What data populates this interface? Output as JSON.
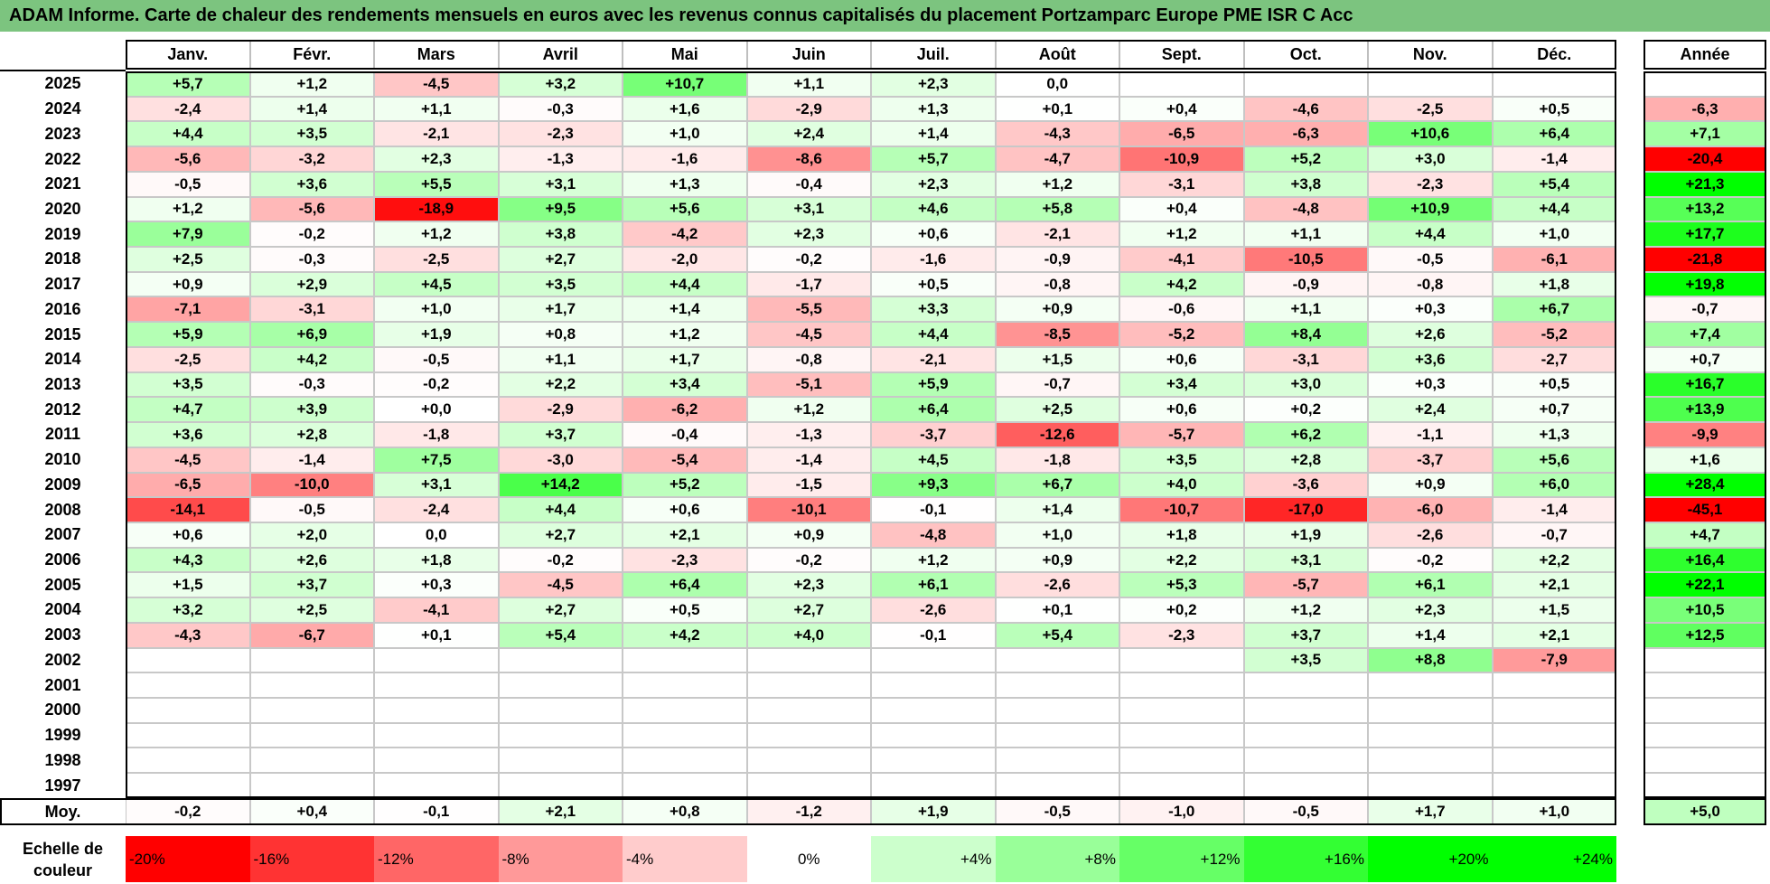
{
  "title": "ADAM Informe. Carte de chaleur des rendements mensuels en euros avec les revenus connus capitalisés du placement Portzamparc Europe PME ISR C Acc",
  "chart_data": {
    "type": "heatmap",
    "months": [
      "Janv.",
      "Févr.",
      "Mars",
      "Avril",
      "Mai",
      "Juin",
      "Juil.",
      "Août",
      "Sept.",
      "Oct.",
      "Nov.",
      "Déc."
    ],
    "year_header": "Année",
    "rows": [
      {
        "year": "2025",
        "values": [
          "+5,7",
          "+1,2",
          "-4,5",
          "+3,2",
          "+10,7",
          "+1,1",
          "+2,3",
          "0,0",
          "",
          "",
          "",
          ""
        ],
        "annual": ""
      },
      {
        "year": "2024",
        "values": [
          "-2,4",
          "+1,4",
          "+1,1",
          "-0,3",
          "+1,6",
          "-2,9",
          "+1,3",
          "+0,1",
          "+0,4",
          "-4,6",
          "-2,5",
          "+0,5"
        ],
        "annual": "-6,3"
      },
      {
        "year": "2023",
        "values": [
          "+4,4",
          "+3,5",
          "-2,1",
          "-2,3",
          "+1,0",
          "+2,4",
          "+1,4",
          "-4,3",
          "-6,5",
          "-6,3",
          "+10,6",
          "+6,4"
        ],
        "annual": "+7,1"
      },
      {
        "year": "2022",
        "values": [
          "-5,6",
          "-3,2",
          "+2,3",
          "-1,3",
          "-1,6",
          "-8,6",
          "+5,7",
          "-4,7",
          "-10,9",
          "+5,2",
          "+3,0",
          "-1,4"
        ],
        "annual": "-20,4"
      },
      {
        "year": "2021",
        "values": [
          "-0,5",
          "+3,6",
          "+5,5",
          "+3,1",
          "+1,3",
          "-0,4",
          "+2,3",
          "+1,2",
          "-3,1",
          "+3,8",
          "-2,3",
          "+5,4"
        ],
        "annual": "+21,3"
      },
      {
        "year": "2020",
        "values": [
          "+1,2",
          "-5,6",
          "-18,9",
          "+9,5",
          "+5,6",
          "+3,1",
          "+4,6",
          "+5,8",
          "+0,4",
          "-4,8",
          "+10,9",
          "+4,4"
        ],
        "annual": "+13,2"
      },
      {
        "year": "2019",
        "values": [
          "+7,9",
          "-0,2",
          "+1,2",
          "+3,8",
          "-4,2",
          "+2,3",
          "+0,6",
          "-2,1",
          "+1,2",
          "+1,1",
          "+4,4",
          "+1,0"
        ],
        "annual": "+17,7"
      },
      {
        "year": "2018",
        "values": [
          "+2,5",
          "-0,3",
          "-2,5",
          "+2,7",
          "-2,0",
          "-0,2",
          "-1,6",
          "-0,9",
          "-4,1",
          "-10,5",
          "-0,5",
          "-6,1"
        ],
        "annual": "-21,8"
      },
      {
        "year": "2017",
        "values": [
          "+0,9",
          "+2,9",
          "+4,5",
          "+3,5",
          "+4,4",
          "-1,7",
          "+0,5",
          "-0,8",
          "+4,2",
          "-0,9",
          "-0,8",
          "+1,8"
        ],
        "annual": "+19,8"
      },
      {
        "year": "2016",
        "values": [
          "-7,1",
          "-3,1",
          "+1,0",
          "+1,7",
          "+1,4",
          "-5,5",
          "+3,3",
          "+0,9",
          "-0,6",
          "+1,1",
          "+0,3",
          "+6,7"
        ],
        "annual": "-0,7"
      },
      {
        "year": "2015",
        "values": [
          "+5,9",
          "+6,9",
          "+1,9",
          "+0,8",
          "+1,2",
          "-4,5",
          "+4,4",
          "-8,5",
          "-5,2",
          "+8,4",
          "+2,6",
          "-5,2"
        ],
        "annual": "+7,4"
      },
      {
        "year": "2014",
        "values": [
          "-2,5",
          "+4,2",
          "-0,5",
          "+1,1",
          "+1,7",
          "-0,8",
          "-2,1",
          "+1,5",
          "+0,6",
          "-3,1",
          "+3,6",
          "-2,7"
        ],
        "annual": "+0,7"
      },
      {
        "year": "2013",
        "values": [
          "+3,5",
          "-0,3",
          "-0,2",
          "+2,2",
          "+3,4",
          "-5,1",
          "+5,9",
          "-0,7",
          "+3,4",
          "+3,0",
          "+0,3",
          "+0,5"
        ],
        "annual": "+16,7"
      },
      {
        "year": "2012",
        "values": [
          "+4,7",
          "+3,9",
          "+0,0",
          "-2,9",
          "-6,2",
          "+1,2",
          "+6,4",
          "+2,5",
          "+0,6",
          "+0,2",
          "+2,4",
          "+0,7"
        ],
        "annual": "+13,9"
      },
      {
        "year": "2011",
        "values": [
          "+3,6",
          "+2,8",
          "-1,8",
          "+3,7",
          "-0,4",
          "-1,3",
          "-3,7",
          "-12,6",
          "-5,7",
          "+6,2",
          "-1,1",
          "+1,3"
        ],
        "annual": "-9,9"
      },
      {
        "year": "2010",
        "values": [
          "-4,5",
          "-1,4",
          "+7,5",
          "-3,0",
          "-5,4",
          "-1,4",
          "+4,5",
          "-1,8",
          "+3,5",
          "+2,8",
          "-3,7",
          "+5,6"
        ],
        "annual": "+1,6"
      },
      {
        "year": "2009",
        "values": [
          "-6,5",
          "-10,0",
          "+3,1",
          "+14,2",
          "+5,2",
          "-1,5",
          "+9,3",
          "+6,7",
          "+4,0",
          "-3,6",
          "+0,9",
          "+6,0"
        ],
        "annual": "+28,4"
      },
      {
        "year": "2008",
        "values": [
          "-14,1",
          "-0,5",
          "-2,4",
          "+4,4",
          "+0,6",
          "-10,1",
          "-0,1",
          "+1,4",
          "-10,7",
          "-17,0",
          "-6,0",
          "-1,4"
        ],
        "annual": "-45,1"
      },
      {
        "year": "2007",
        "values": [
          "+0,6",
          "+2,0",
          "0,0",
          "+2,7",
          "+2,1",
          "+0,9",
          "-4,8",
          "+1,0",
          "+1,8",
          "+1,9",
          "-2,6",
          "-0,7"
        ],
        "annual": "+4,7"
      },
      {
        "year": "2006",
        "values": [
          "+4,3",
          "+2,6",
          "+1,8",
          "-0,2",
          "-2,3",
          "-0,2",
          "+1,2",
          "+0,9",
          "+2,2",
          "+3,1",
          "-0,2",
          "+2,2"
        ],
        "annual": "+16,4"
      },
      {
        "year": "2005",
        "values": [
          "+1,5",
          "+3,7",
          "+0,3",
          "-4,5",
          "+6,4",
          "+2,3",
          "+6,1",
          "-2,6",
          "+5,3",
          "-5,7",
          "+6,1",
          "+2,1"
        ],
        "annual": "+22,1"
      },
      {
        "year": "2004",
        "values": [
          "+3,2",
          "+2,5",
          "-4,1",
          "+2,7",
          "+0,5",
          "+2,7",
          "-2,6",
          "+0,1",
          "+0,2",
          "+1,2",
          "+2,3",
          "+1,5"
        ],
        "annual": "+10,5"
      },
      {
        "year": "2003",
        "values": [
          "-4,3",
          "-6,7",
          "+0,1",
          "+5,4",
          "+4,2",
          "+4,0",
          "-0,1",
          "+5,4",
          "-2,3",
          "+3,7",
          "+1,4",
          "+2,1"
        ],
        "annual": "+12,5"
      },
      {
        "year": "2002",
        "values": [
          "",
          "",
          "",
          "",
          "",
          "",
          "",
          "",
          "",
          "+3,5",
          "+8,8",
          "-7,9"
        ],
        "annual": ""
      },
      {
        "year": "2001",
        "values": [
          "",
          "",
          "",
          "",
          "",
          "",
          "",
          "",
          "",
          "",
          "",
          ""
        ],
        "annual": ""
      },
      {
        "year": "2000",
        "values": [
          "",
          "",
          "",
          "",
          "",
          "",
          "",
          "",
          "",
          "",
          "",
          ""
        ],
        "annual": ""
      },
      {
        "year": "1999",
        "values": [
          "",
          "",
          "",
          "",
          "",
          "",
          "",
          "",
          "",
          "",
          "",
          ""
        ],
        "annual": ""
      },
      {
        "year": "1998",
        "values": [
          "",
          "",
          "",
          "",
          "",
          "",
          "",
          "",
          "",
          "",
          "",
          ""
        ],
        "annual": ""
      },
      {
        "year": "1997",
        "values": [
          "",
          "",
          "",
          "",
          "",
          "",
          "",
          "",
          "",
          "",
          "",
          ""
        ],
        "annual": ""
      }
    ],
    "average": {
      "label": "Moy.",
      "values": [
        "-0,2",
        "+0,4",
        "-0,1",
        "+2,1",
        "+0,8",
        "-1,2",
        "+1,9",
        "-0,5",
        "-1,0",
        "-0,5",
        "+1,7",
        "+1,0"
      ],
      "annual": "+5,0"
    },
    "scale": {
      "label": "Echelle de couleur",
      "steps": [
        {
          "label": "-20%",
          "value": -20,
          "color": "#ff0000"
        },
        {
          "label": "-16%",
          "value": -16,
          "color": "#ff3333"
        },
        {
          "label": "-12%",
          "value": -12,
          "color": "#ff6666"
        },
        {
          "label": "-8%",
          "value": -8,
          "color": "#ff9999"
        },
        {
          "label": "-4%",
          "value": -4,
          "color": "#ffcccc"
        },
        {
          "label": "0%",
          "value": 0,
          "color": "#ffffff"
        },
        {
          "label": "+4%",
          "value": 4,
          "color": "#ccffcc"
        },
        {
          "label": "+8%",
          "value": 8,
          "color": "#99ff99"
        },
        {
          "label": "+12%",
          "value": 12,
          "color": "#66ff66"
        },
        {
          "label": "+16%",
          "value": 16,
          "color": "#33ff33"
        },
        {
          "label": "+20%",
          "value": 20,
          "color": "#00ff00"
        },
        {
          "label": "+24%",
          "value": 24,
          "color": "#00ff00"
        }
      ]
    },
    "color_range": {
      "min": -20,
      "max": 24
    }
  }
}
